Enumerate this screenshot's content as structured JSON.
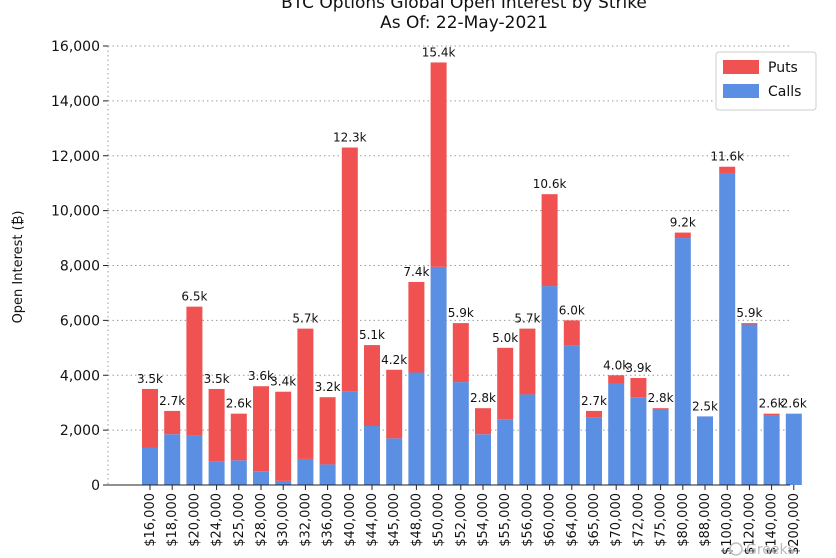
{
  "chart_data": {
    "type": "bar",
    "stacked": true,
    "title": "BTC Options Global Open Interest by Strike",
    "subtitle": "As Of: 22-May-2021",
    "xlabel": "",
    "ylabel": "Open Interest (₿)",
    "ylim": [
      0,
      16000
    ],
    "yticks": [
      "0",
      "2,000",
      "4,000",
      "6,000",
      "8,000",
      "10,000",
      "12,000",
      "14,000",
      "16,000"
    ],
    "grid": "horizontal-dotted",
    "legend_position": "top-right",
    "categories": [
      "$16,000",
      "$18,000",
      "$20,000",
      "$24,000",
      "$25,000",
      "$28,000",
      "$30,000",
      "$32,000",
      "$36,000",
      "$40,000",
      "$44,000",
      "$45,000",
      "$48,000",
      "$50,000",
      "$52,000",
      "$54,000",
      "$55,000",
      "$56,000",
      "$60,000",
      "$64,000",
      "$65,000",
      "$70,000",
      "$72,000",
      "$75,000",
      "$80,000",
      "$88,000",
      "$100,000",
      "$120,000",
      "$140,000",
      "$200,000"
    ],
    "series": [
      {
        "name": "Calls",
        "color": "#5b8fe3",
        "values": [
          1350,
          1850,
          1800,
          850,
          900,
          500,
          150,
          950,
          750,
          3400,
          2150,
          1700,
          4100,
          7950,
          3750,
          1850,
          2400,
          3300,
          7250,
          5100,
          2450,
          3700,
          3200,
          2750,
          9000,
          2500,
          11350,
          5850,
          2550,
          2600
        ]
      },
      {
        "name": "Puts",
        "color": "#f05252",
        "values": [
          2150,
          850,
          4700,
          2650,
          1700,
          3100,
          3250,
          4750,
          2450,
          8900,
          2950,
          2500,
          3300,
          7450,
          2150,
          950,
          2600,
          2400,
          3350,
          900,
          250,
          300,
          700,
          50,
          200,
          0,
          250,
          50,
          50,
          0
        ]
      }
    ],
    "totals_labels": [
      "3.5k",
      "2.7k",
      "6.5k",
      "3.5k",
      "2.6k",
      "3.6k",
      "3.4k",
      "5.7k",
      "3.2k",
      "12.3k",
      "5.1k",
      "4.2k",
      "7.4k",
      "15.4k",
      "5.9k",
      "2.8k",
      "5.0k",
      "5.7k",
      "10.6k",
      "6.0k",
      "2.7k",
      "4.0k",
      "3.9k",
      "2.8k",
      "9.2k",
      "2.5k",
      "11.6k",
      "5.9k",
      "2.6k",
      "2.6k"
    ]
  },
  "legend": {
    "puts_label": "Puts",
    "calls_label": "Calls"
  },
  "watermark": {
    "text": "Greeks"
  }
}
